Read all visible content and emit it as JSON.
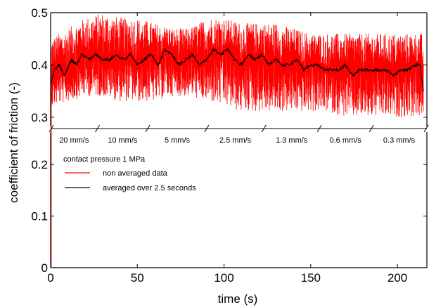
{
  "chart_data": {
    "type": "line",
    "title": "",
    "xlabel": "time (s)",
    "ylabel": "coefficient of friction (-)",
    "xlim": [
      0,
      217
    ],
    "ylim": [
      0,
      0.5
    ],
    "x_ticks": [
      0,
      50,
      100,
      150,
      200
    ],
    "x_tick_labels": [
      "0",
      "50",
      "100",
      "150",
      "200"
    ],
    "y_ticks": [
      0,
      0.1,
      0.2,
      0.3,
      0.4,
      0.5
    ],
    "y_tick_labels": [
      "0",
      "0.1",
      "0.2",
      "0.3",
      "0.4",
      "0.5"
    ],
    "axis_break": {
      "y_from": 0.26,
      "y_to": 0.285
    },
    "grid": false,
    "legend": {
      "placement": "center-left",
      "title": "contact pressure 1 MPa",
      "entries": [
        {
          "label": "non averaged data",
          "color": "#ff0000"
        },
        {
          "label": "averaged over 2.5 seconds",
          "color": "#000000"
        }
      ]
    },
    "segments": [
      {
        "label": "20 mm/s",
        "start": 0,
        "end": 27
      },
      {
        "label": "10 mm/s",
        "start": 27,
        "end": 56
      },
      {
        "label": "5 mm/s",
        "start": 56,
        "end": 90
      },
      {
        "label": "2.5 mm/s",
        "start": 90,
        "end": 123
      },
      {
        "label": "1.3 mm/s",
        "start": 123,
        "end": 155
      },
      {
        "label": "0.6 mm/s",
        "start": 155,
        "end": 185
      },
      {
        "label": "0.3 mm/s",
        "start": 185,
        "end": 217
      }
    ],
    "series": [
      {
        "name": "non averaged data",
        "color": "#ff0000",
        "envelope": {
          "x": [
            0,
            10,
            20,
            30,
            40,
            50,
            60,
            70,
            80,
            90,
            100,
            110,
            120,
            130,
            140,
            150,
            160,
            170,
            180,
            190,
            200,
            210,
            215
          ],
          "low": [
            0.32,
            0.33,
            0.34,
            0.34,
            0.33,
            0.33,
            0.33,
            0.34,
            0.34,
            0.33,
            0.32,
            0.31,
            0.31,
            0.31,
            0.31,
            0.31,
            0.31,
            0.3,
            0.3,
            0.3,
            0.3,
            0.3,
            0.3
          ],
          "high": [
            0.45,
            0.47,
            0.49,
            0.5,
            0.49,
            0.49,
            0.48,
            0.47,
            0.47,
            0.49,
            0.49,
            0.48,
            0.48,
            0.48,
            0.47,
            0.46,
            0.46,
            0.46,
            0.46,
            0.46,
            0.46,
            0.46,
            0.46
          ]
        }
      },
      {
        "name": "averaged over 2.5 seconds",
        "color": "#000000",
        "x": [
          0,
          2,
          5,
          8,
          12,
          15,
          18,
          22,
          26,
          30,
          34,
          38,
          42,
          46,
          50,
          54,
          58,
          62,
          66,
          70,
          74,
          78,
          82,
          86,
          90,
          94,
          98,
          102,
          106,
          110,
          114,
          118,
          122,
          126,
          130,
          134,
          138,
          142,
          146,
          150,
          154,
          158,
          162,
          166,
          170,
          174,
          178,
          182,
          186,
          190,
          194,
          198,
          202,
          206,
          210,
          213,
          215
        ],
        "y": [
          0.36,
          0.39,
          0.4,
          0.38,
          0.41,
          0.4,
          0.42,
          0.41,
          0.42,
          0.41,
          0.41,
          0.42,
          0.41,
          0.42,
          0.4,
          0.41,
          0.42,
          0.4,
          0.43,
          0.42,
          0.4,
          0.41,
          0.42,
          0.4,
          0.41,
          0.43,
          0.42,
          0.43,
          0.41,
          0.4,
          0.42,
          0.41,
          0.42,
          0.4,
          0.41,
          0.4,
          0.4,
          0.41,
          0.39,
          0.4,
          0.4,
          0.39,
          0.39,
          0.39,
          0.4,
          0.38,
          0.39,
          0.39,
          0.39,
          0.39,
          0.39,
          0.38,
          0.39,
          0.39,
          0.4,
          0.4,
          0.35
        ]
      }
    ]
  }
}
